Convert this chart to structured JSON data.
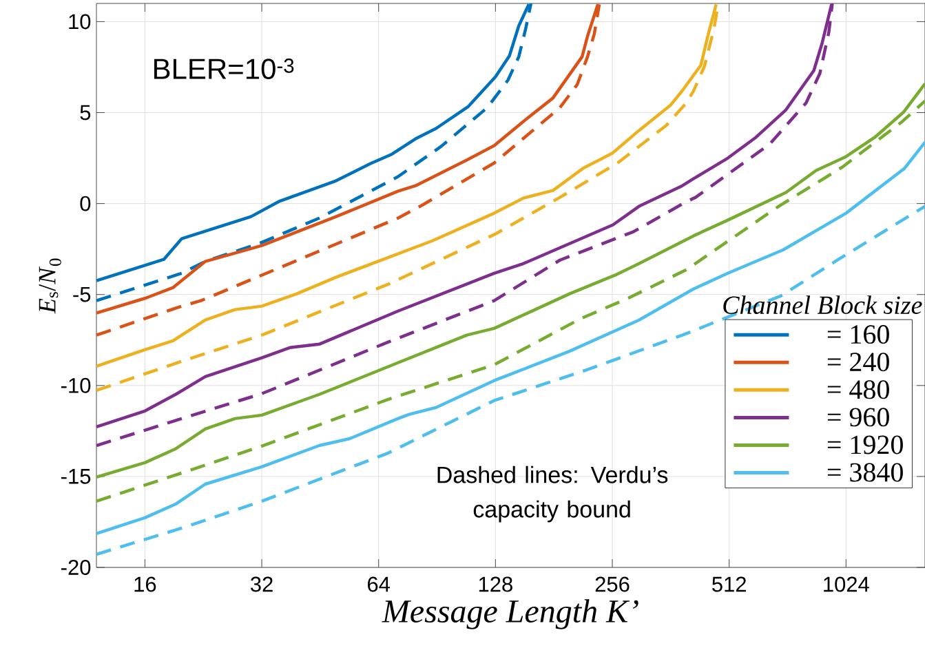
{
  "chart_data": {
    "type": "line",
    "xlabel": "Message Length K’",
    "ylabel": "*E*$_{s}$/*N*$_{0}$",
    "log": "x",
    "xlim": [
      12,
      1636
    ],
    "ylim": [
      -20,
      11
    ],
    "xticks": [
      16,
      32,
      64,
      128,
      256,
      512,
      1024
    ],
    "yticks": [
      -20,
      -15,
      -10,
      -5,
      0,
      5,
      10
    ],
    "grid": true,
    "legend": "right",
    "legend_title": "Channel Block size",
    "annotations": [
      "BLER=10$^{-3}$",
      "Dashed lines: Verdu’s capacity bound"
    ],
    "series": [
      {
        "name": "= 160",
        "color": "#0072bd",
        "line_style": "solid",
        "x": [
          12,
          17.9,
          19.9,
          30,
          35.4,
          49.7,
          61,
          68.9,
          79.7,
          90,
          109,
          128,
          139,
          147,
          156
        ],
        "values": [
          -4.24,
          -3.07,
          -1.93,
          -0.72,
          0.11,
          1.25,
          2.2,
          2.69,
          3.56,
          4.13,
          5.34,
          6.97,
          8.11,
          9.77,
          10.95
        ]
      },
      {
        "color": "#0072bd",
        "line_style": "dashed",
        "x": [
          12,
          19.9,
          22.9,
          31.8,
          45,
          71.8,
          92.7,
          121.9,
          137.8,
          147,
          153,
          158
        ],
        "values": [
          -5.34,
          -3.83,
          -3.18,
          -2.16,
          -0.8,
          1.48,
          3.14,
          5.27,
          6.78,
          8.07,
          9.58,
          11
        ]
      },
      {
        "name": "= 240",
        "color": "#d95319",
        "line_style": "solid",
        "x": [
          12,
          16.1,
          18.9,
          22.9,
          32,
          49.7,
          71.8,
          79.7,
          107.9,
          127,
          151,
          180,
          214,
          221,
          235
        ],
        "values": [
          -6.02,
          -5.19,
          -4.62,
          -3.18,
          -2.31,
          -0.72,
          0.68,
          0.98,
          2.39,
          3.18,
          4.51,
          5.8,
          8.07,
          9.2,
          10.95
        ]
      },
      {
        "color": "#d95319",
        "line_style": "dashed",
        "x": [
          12,
          19.9,
          22.3,
          71.8,
          83,
          127,
          187.6,
          208,
          221,
          230,
          237
        ],
        "values": [
          -7.23,
          -5.64,
          -5.34,
          -0.8,
          -0.08,
          2.23,
          5.27,
          6.55,
          8.07,
          9.32,
          10.95
        ]
      },
      {
        "name": "= 480",
        "color": "#edb120",
        "line_style": "solid",
        "x": [
          12,
          16,
          18.9,
          22.9,
          27.3,
          32,
          39.4,
          49.7,
          88,
          127,
          151,
          180,
          215,
          256,
          300,
          362,
          388,
          433,
          451,
          474
        ],
        "values": [
          -8.94,
          -8.03,
          -7.54,
          -6.4,
          -5.83,
          -5.64,
          -4.96,
          -4.05,
          -2.05,
          -0.53,
          0.3,
          0.72,
          1.93,
          2.77,
          4.02,
          5.42,
          6.21,
          7.61,
          9.2,
          10.95
        ]
      },
      {
        "color": "#edb120",
        "line_style": "dashed",
        "x": [
          12,
          19.9,
          32,
          67.8,
          128,
          187.6,
          264,
          352,
          397,
          414,
          442,
          468,
          480
        ],
        "values": [
          -10.27,
          -8.67,
          -7.23,
          -4.43,
          -1.67,
          0.34,
          2.23,
          4.28,
          5.53,
          6.17,
          7.54,
          9.62,
          11
        ]
      },
      {
        "name": "= 960",
        "color": "#7e2f8e",
        "line_style": "solid",
        "x": [
          12,
          16,
          19.2,
          22.9,
          32,
          37.8,
          45,
          71.8,
          127,
          151,
          257,
          300,
          388,
          414,
          508,
          600,
          717,
          846,
          889,
          940
        ],
        "values": [
          -12.27,
          -11.4,
          -10.49,
          -9.51,
          -8.48,
          -7.92,
          -7.73,
          -5.91,
          -3.83,
          -3.3,
          -1.17,
          -0.15,
          0.98,
          1.36,
          2.5,
          3.64,
          5.15,
          7.31,
          8.83,
          10.95
        ]
      },
      {
        "color": "#7e2f8e",
        "line_style": "dashed",
        "x": [
          12,
          19.9,
          32,
          67.8,
          127,
          187.6,
          290,
          397,
          419.5,
          651,
          808,
          877,
          925,
          944
        ],
        "values": [
          -13.3,
          -11.82,
          -10.45,
          -7.61,
          -5.34,
          -3.11,
          -1.55,
          0.1,
          0.34,
          3.26,
          5.53,
          7.16,
          9.43,
          11
        ]
      },
      {
        "name": "= 1920",
        "color": "#77ac30",
        "line_style": "solid",
        "x": [
          12,
          16,
          19.2,
          22.9,
          27.3,
          32,
          45,
          71.8,
          108,
          127,
          198.7,
          260,
          300,
          414,
          508,
          717,
          858,
          1024,
          1214,
          1443,
          1636
        ],
        "values": [
          -15.04,
          -14.24,
          -13.48,
          -12.39,
          -11.82,
          -11.63,
          -10.49,
          -8.75,
          -7.23,
          -6.86,
          -4.96,
          -3.94,
          -3.3,
          -1.78,
          -0.91,
          0.61,
          1.82,
          2.58,
          3.64,
          5.04,
          6.59
        ]
      },
      {
        "color": "#77ac30",
        "line_style": "dashed",
        "x": [
          12,
          19.9,
          32,
          67.8,
          127,
          212,
          282,
          397,
          687,
          1003,
          1430,
          1636
        ],
        "values": [
          -16.36,
          -14.81,
          -13.33,
          -10.76,
          -8.86,
          -6.33,
          -5.19,
          -3.64,
          -0.15,
          2.01,
          4.51,
          5.64
        ]
      },
      {
        "name": "= 3840",
        "color": "#4dbeee",
        "line_style": "solid",
        "x": [
          12,
          16,
          19.2,
          22.9,
          32,
          45,
          53.9,
          71.8,
          76.6,
          90,
          127,
          199,
          300,
          414,
          508,
          706,
          1024,
          1448,
          1636
        ],
        "values": [
          -18.14,
          -17.27,
          -16.52,
          -15.42,
          -14.47,
          -13.3,
          -12.92,
          -11.82,
          -11.59,
          -11.21,
          -9.73,
          -8.11,
          -6.4,
          -4.7,
          -3.83,
          -2.54,
          -0.53,
          1.93,
          3.37
        ]
      },
      {
        "color": "#4dbeee",
        "line_style": "dashed",
        "x": [
          12,
          19.9,
          32,
          67.8,
          127,
          218,
          388,
          695,
          979,
          1636
        ],
        "values": [
          -19.28,
          -17.84,
          -16.36,
          -13.71,
          -10.83,
          -9.17,
          -7.23,
          -5.08,
          -3.07,
          -0.15
        ]
      }
    ]
  }
}
